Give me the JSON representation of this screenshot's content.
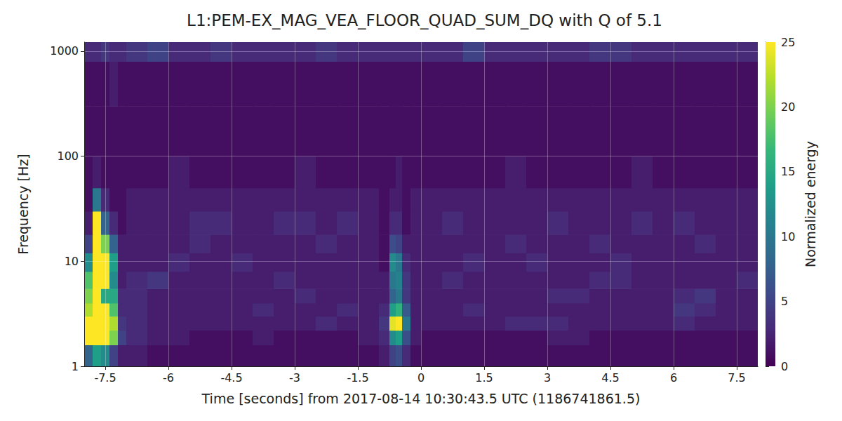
{
  "chart_data": {
    "type": "heatmap",
    "title": "L1:PEM-EX_MAG_VEA_FLOOR_QUAD_SUM_DQ with Q of 5.1",
    "x_label": "Time [seconds] from 2017-08-14 10:30:43.5 UTC (1186741861.5)",
    "y_label": "Frequency [Hz]",
    "xlim": [
      -8,
      8
    ],
    "xticks": [
      -7.5,
      -6,
      -4.5,
      -3,
      -1.5,
      0,
      1.5,
      3,
      4.5,
      6,
      7.5
    ],
    "ylim": [
      1,
      1220
    ],
    "yticks": [
      1,
      10,
      100,
      1000
    ],
    "log": "y",
    "grid": true,
    "time_edges": [
      -8,
      -7.8,
      -7.6,
      -7.4,
      -7.2,
      -7,
      -6.5,
      -6,
      -5.5,
      -5,
      -4.5,
      -4,
      -3.5,
      -3,
      -2.5,
      -2,
      -1.5,
      -1,
      -0.75,
      -0.6,
      -0.45,
      -0.25,
      0,
      0.5,
      1,
      1.5,
      2,
      2.5,
      3,
      3.5,
      4,
      4.5,
      5,
      5.5,
      6,
      6.5,
      7,
      7.5,
      8
    ],
    "frequency_edges": [
      1,
      1.6,
      2.2,
      3,
      4,
      5.5,
      8,
      12,
      18,
      30,
      50,
      100,
      300,
      800,
      1220
    ],
    "energy": [
      [
        8,
        14,
        12,
        5,
        2,
        2,
        1,
        1,
        1,
        1,
        1,
        1,
        1,
        1,
        1,
        1,
        1,
        2,
        5,
        6,
        3,
        1,
        1,
        1,
        1,
        1,
        1,
        1,
        1,
        1,
        1,
        1,
        1,
        1,
        1,
        1,
        1,
        1
      ],
      [
        25,
        30,
        30,
        20,
        5,
        3,
        2,
        2,
        1,
        1,
        1,
        2,
        1,
        1,
        1,
        1,
        2,
        3,
        12,
        14,
        6,
        2,
        1,
        1,
        1,
        1,
        1,
        1,
        2,
        2,
        1,
        1,
        1,
        1,
        1,
        1,
        1,
        1
      ],
      [
        25,
        30,
        30,
        22,
        4,
        3,
        2,
        2,
        2,
        2,
        2,
        2,
        2,
        2,
        3,
        2,
        2,
        4,
        24,
        26,
        10,
        2,
        2,
        2,
        2,
        2,
        3,
        3,
        3,
        2,
        2,
        2,
        2,
        2,
        3,
        2,
        2,
        2
      ],
      [
        22,
        30,
        30,
        18,
        3,
        3,
        2,
        2,
        2,
        2,
        2,
        3,
        2,
        2,
        2,
        3,
        2,
        3,
        14,
        16,
        7,
        2,
        2,
        2,
        3,
        2,
        2,
        2,
        2,
        2,
        2,
        2,
        2,
        2,
        4,
        3,
        2,
        2
      ],
      [
        20,
        30,
        15,
        15,
        3,
        3,
        2,
        2,
        2,
        2,
        2,
        2,
        2,
        3,
        2,
        2,
        2,
        2,
        8,
        10,
        4,
        2,
        2,
        2,
        2,
        2,
        2,
        2,
        3,
        3,
        2,
        2,
        2,
        2,
        3,
        4,
        2,
        2
      ],
      [
        18,
        30,
        28,
        12,
        2,
        3,
        4,
        2,
        2,
        2,
        2,
        2,
        3,
        2,
        2,
        2,
        2,
        2,
        10,
        11,
        4,
        2,
        2,
        3,
        2,
        2,
        2,
        2,
        2,
        2,
        3,
        3,
        2,
        2,
        2,
        2,
        2,
        3
      ],
      [
        12,
        30,
        26,
        14,
        2,
        2,
        2,
        3,
        2,
        2,
        3,
        2,
        2,
        2,
        2,
        2,
        2,
        1,
        12,
        10,
        3,
        2,
        2,
        2,
        3,
        2,
        2,
        3,
        2,
        2,
        2,
        3,
        2,
        2,
        2,
        2,
        2,
        2
      ],
      [
        5,
        28,
        20,
        8,
        2,
        2,
        2,
        2,
        3,
        2,
        2,
        2,
        2,
        2,
        3,
        2,
        2,
        1,
        6,
        5,
        2,
        2,
        2,
        2,
        2,
        2,
        3,
        2,
        2,
        2,
        3,
        2,
        2,
        2,
        2,
        3,
        2,
        2
      ],
      [
        2,
        25,
        8,
        3,
        1,
        2,
        2,
        2,
        3,
        3,
        2,
        2,
        3,
        3,
        2,
        3,
        2,
        1,
        3,
        3,
        1,
        2,
        2,
        3,
        2,
        2,
        2,
        2,
        3,
        2,
        2,
        2,
        3,
        2,
        3,
        2,
        2,
        2
      ],
      [
        1,
        10,
        3,
        1,
        1,
        2,
        2,
        2,
        2,
        2,
        2,
        2,
        2,
        2,
        2,
        2,
        2,
        1,
        2,
        2,
        1,
        2,
        2,
        2,
        2,
        2,
        2,
        2,
        2,
        2,
        2,
        2,
        2,
        2,
        2,
        2,
        2,
        2
      ],
      [
        1,
        2,
        1,
        1,
        1,
        1,
        1,
        2,
        1,
        1,
        1,
        1,
        1,
        2,
        1,
        1,
        1,
        1,
        1,
        2,
        1,
        1,
        1,
        1,
        1,
        1,
        2,
        1,
        1,
        1,
        1,
        1,
        2,
        1,
        1,
        1,
        1,
        1
      ],
      [
        1,
        1,
        1,
        1,
        1,
        1,
        1,
        1,
        1,
        1,
        1,
        1,
        1,
        1,
        1,
        1,
        1,
        1,
        1,
        1,
        1,
        1,
        1,
        1,
        1,
        1,
        1,
        1,
        1,
        1,
        1,
        1,
        1,
        1,
        1,
        1,
        1,
        1
      ],
      [
        1,
        1,
        1,
        2,
        1,
        1,
        1,
        1,
        1,
        1,
        1,
        1,
        1,
        1,
        1,
        1,
        1,
        1,
        1,
        1,
        1,
        1,
        1,
        1,
        1,
        1,
        1,
        1,
        1,
        1,
        1,
        1,
        1,
        1,
        1,
        1,
        1,
        1
      ],
      [
        3,
        3,
        4,
        3,
        3,
        4,
        5,
        3,
        3,
        4,
        3,
        3,
        3,
        3,
        4,
        3,
        3,
        3,
        3,
        3,
        3,
        3,
        3,
        3,
        5,
        3,
        3,
        3,
        3,
        3,
        4,
        4,
        3,
        3,
        3,
        3,
        3,
        3
      ]
    ],
    "colorbar": {
      "label": "Normalized energy",
      "lim": [
        0,
        25
      ],
      "ticks": [
        0,
        5,
        10,
        15,
        20,
        25
      ]
    }
  }
}
